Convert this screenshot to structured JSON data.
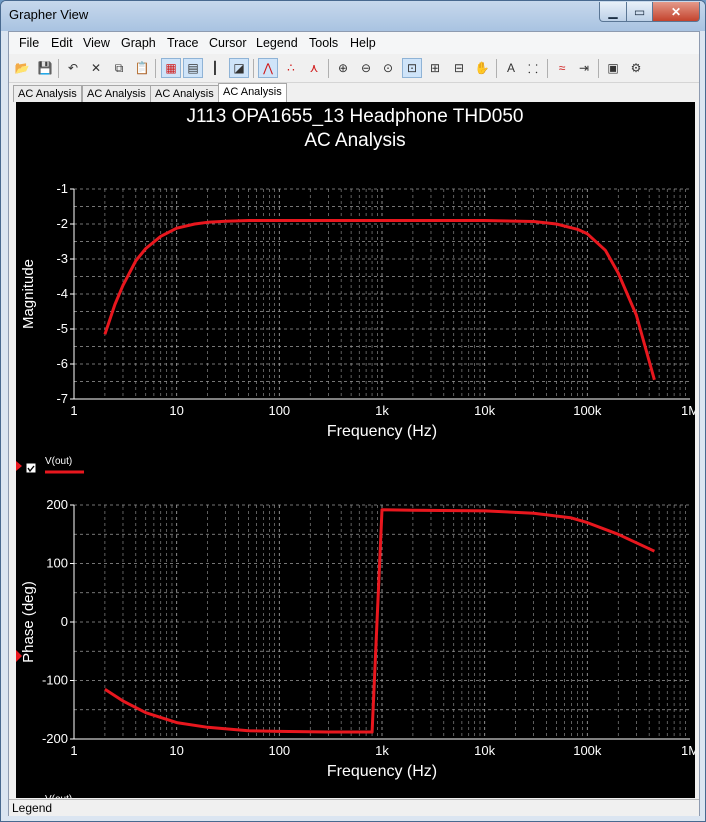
{
  "window": {
    "title": "Grapher View"
  },
  "menu": [
    "File",
    "Edit",
    "View",
    "Graph",
    "Trace",
    "Cursor",
    "Legend",
    "Tools",
    "Help"
  ],
  "toolbar": [
    {
      "icon": "open-folder-icon",
      "glyph": "📂"
    },
    {
      "icon": "save-icon",
      "glyph": "💾"
    },
    {
      "icon": "undo-icon",
      "glyph": "↶"
    },
    {
      "icon": "delete-icon",
      "glyph": "✕"
    },
    {
      "icon": "copy-icon",
      "glyph": "⧉"
    },
    {
      "icon": "paste-icon",
      "glyph": "📋"
    },
    {
      "icon": "grid-icon",
      "glyph": "▦"
    },
    {
      "icon": "data-table-icon",
      "glyph": "▤"
    },
    {
      "icon": "bar-graph-icon",
      "glyph": "┃"
    },
    {
      "icon": "overlay-icon",
      "glyph": "◪"
    },
    {
      "icon": "line-plot-icon",
      "glyph": "⋀"
    },
    {
      "icon": "scatter-plot-icon",
      "glyph": "∴"
    },
    {
      "icon": "marker-plot-icon",
      "glyph": "⋏"
    },
    {
      "icon": "zoom-in-icon",
      "glyph": "⊕"
    },
    {
      "icon": "zoom-out-icon",
      "glyph": "⊖"
    },
    {
      "icon": "zoom-reset-icon",
      "glyph": "⊙"
    },
    {
      "icon": "zoom-area-icon",
      "glyph": "⊡"
    },
    {
      "icon": "zoom-x-icon",
      "glyph": "⊞"
    },
    {
      "icon": "zoom-y-icon",
      "glyph": "⊟"
    },
    {
      "icon": "pan-hand-icon",
      "glyph": "✋"
    },
    {
      "icon": "text-tool-icon",
      "glyph": "A"
    },
    {
      "icon": "label-tool-icon",
      "glyph": "⸬"
    },
    {
      "icon": "trace-icon",
      "glyph": "≈"
    },
    {
      "icon": "export-icon",
      "glyph": "⇥"
    },
    {
      "icon": "copy-graph-icon",
      "glyph": "▣"
    },
    {
      "icon": "properties-icon",
      "glyph": "⚙"
    }
  ],
  "tabs": [
    "AC Analysis",
    "AC Analysis",
    "AC Analysis",
    "AC Analysis"
  ],
  "active_tab": 3,
  "status": "Legend",
  "colors": {
    "background": "#000000",
    "grid": "#9c9c9c",
    "trace": "#e8171e",
    "text": "#ffffff"
  },
  "chart_data": [
    {
      "type": "line",
      "title": "J113 OPA1655_13 Headphone THD050",
      "subtitle": "AC Analysis",
      "xlabel": "Frequency (Hz)",
      "ylabel": "Magnitude",
      "xscale": "log",
      "xlim": [
        1,
        1000000
      ],
      "ylim": [
        -7,
        -1
      ],
      "xticks": [
        "1",
        "10",
        "100",
        "1k",
        "10k",
        "100k",
        "1M"
      ],
      "yticks": [
        "-1",
        "-2",
        "-3",
        "-4",
        "-5",
        "-6",
        "-7"
      ],
      "grid": true,
      "legend": "bottom-left",
      "series": [
        {
          "name": "V(out)",
          "x": [
            2,
            2.5,
            3,
            4,
            5,
            7,
            10,
            15,
            20,
            30,
            50,
            100,
            1000,
            10000,
            30000,
            50000,
            80000,
            100000,
            150000,
            200000,
            300000,
            450000
          ],
          "y": [
            -5.15,
            -4.3,
            -3.75,
            -3.05,
            -2.7,
            -2.35,
            -2.12,
            -2.0,
            -1.95,
            -1.92,
            -1.9,
            -1.9,
            -1.9,
            -1.9,
            -1.93,
            -2.0,
            -2.15,
            -2.28,
            -2.75,
            -3.4,
            -4.6,
            -6.45
          ]
        }
      ]
    },
    {
      "type": "line",
      "xlabel": "Frequency (Hz)",
      "ylabel": "Phase (deg)",
      "xscale": "log",
      "xlim": [
        1,
        1000000
      ],
      "ylim": [
        -200,
        200
      ],
      "xticks": [
        "1",
        "10",
        "100",
        "1k",
        "10k",
        "100k",
        "1M"
      ],
      "yticks": [
        "200",
        "100",
        "0",
        "-100",
        "-200"
      ],
      "grid": true,
      "legend": "bottom-left",
      "series": [
        {
          "name": "V(out)",
          "x": [
            2,
            3,
            5,
            10,
            20,
            50,
            100,
            300,
            800,
            1000,
            2000,
            10000,
            30000,
            70000,
            100000,
            200000,
            450000
          ],
          "y": [
            -115,
            -135,
            -155,
            -172,
            -180,
            -186,
            -187,
            -188,
            -188,
            192,
            191,
            190,
            186,
            178,
            170,
            150,
            121
          ]
        }
      ]
    }
  ]
}
